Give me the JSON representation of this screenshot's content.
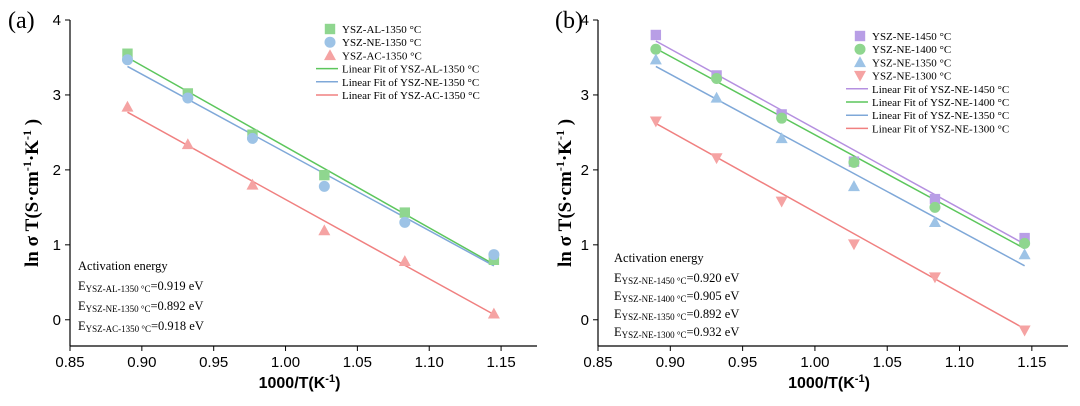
{
  "chart_data": [
    {
      "type": "scatter",
      "panel_label": "(a)",
      "title": "",
      "xlabel": "1000/T(K",
      "xlabel_sup": "-1",
      "xlabel_end": ")",
      "ylabel_main": "ln σ T(S·cm",
      "ylabel_sup1": "-1",
      "ylabel_mid": "·K",
      "ylabel_end": ")",
      "xlim": [
        0.85,
        1.175
      ],
      "ylim": [
        -0.35,
        4.0
      ],
      "xticks": [
        0.85,
        0.9,
        0.95,
        1.0,
        1.05,
        1.1,
        1.15
      ],
      "xtick_labels": [
        "0.85",
        "0.90",
        "0.95",
        "1.00",
        "1.05",
        "1.10",
        "1.15"
      ],
      "yticks": [
        0,
        1,
        2,
        3,
        4
      ],
      "ytick_labels": [
        "0",
        "1",
        "2",
        "3",
        "4"
      ],
      "x": [
        0.89,
        0.932,
        0.977,
        1.027,
        1.083,
        1.145
      ],
      "series": [
        {
          "name": "YSZ-AL-1350 °C",
          "marker": "square",
          "color": "#8fd68f",
          "values": [
            3.55,
            3.02,
            2.47,
            1.93,
            1.43,
            0.8
          ]
        },
        {
          "name": "YSZ-NE-1350 °C",
          "marker": "circle",
          "color": "#9dc3e6",
          "values": [
            3.47,
            2.96,
            2.42,
            1.78,
            1.3,
            0.87
          ]
        },
        {
          "name": "YSZ-AC-1350 °C",
          "marker": "triangle-up",
          "color": "#f5a3a3",
          "values": [
            2.84,
            2.34,
            1.8,
            1.19,
            0.78,
            0.08
          ]
        }
      ],
      "fits": [
        {
          "name": "Linear Fit of YSZ-AL-1350 °C",
          "color": "#5cc65c",
          "x_range": [
            0.89,
            1.145
          ],
          "y_range": [
            3.5,
            0.74
          ]
        },
        {
          "name": "Linear Fit of YSZ-NE-1350 °C",
          "color": "#7fa8d8",
          "x_range": [
            0.89,
            1.145
          ],
          "y_range": [
            3.38,
            0.72
          ]
        },
        {
          "name": "Linear Fit of YSZ-AC-1350 °C",
          "color": "#f08080",
          "x_range": [
            0.89,
            1.145
          ],
          "y_range": [
            2.77,
            0.07
          ]
        }
      ],
      "annotation": {
        "title": "Activation energy",
        "lines": [
          {
            "prefix": "E",
            "sub": "YSZ-AL-1350 °C",
            "value": "=0.919  eV"
          },
          {
            "prefix": "E",
            "sub": "YSZ-NE-1350 °C",
            "value": "=0.892  eV"
          },
          {
            "prefix": "E",
            "sub": "YSZ-AC-1350 °C",
            "value": "=0.918  eV"
          }
        ]
      }
    },
    {
      "type": "scatter",
      "panel_label": "(b)",
      "title": "",
      "xlabel": "1000/T(K",
      "xlabel_sup": "-1",
      "xlabel_end": ")",
      "ylabel_main": "ln σ T(S·cm",
      "ylabel_sup1": "-1",
      "ylabel_mid": "·K",
      "ylabel_end": ")",
      "xlim": [
        0.85,
        1.175
      ],
      "ylim": [
        -0.35,
        4.0
      ],
      "xticks": [
        0.85,
        0.9,
        0.95,
        1.0,
        1.05,
        1.1,
        1.15
      ],
      "xtick_labels": [
        "0.85",
        "0.90",
        "0.95",
        "1.00",
        "1.05",
        "1.10",
        "1.15"
      ],
      "yticks": [
        0,
        1,
        2,
        3,
        4
      ],
      "ytick_labels": [
        "0",
        "1",
        "2",
        "3",
        "4"
      ],
      "x": [
        0.89,
        0.932,
        0.977,
        1.027,
        1.083,
        1.145
      ],
      "series": [
        {
          "name": "YSZ-NE-1450 °C",
          "marker": "square",
          "color": "#b89ee6",
          "values": [
            3.8,
            3.26,
            2.74,
            2.11,
            1.61,
            1.09
          ]
        },
        {
          "name": "YSZ-NE-1400 °C",
          "marker": "circle",
          "color": "#8fd68f",
          "values": [
            3.61,
            3.22,
            2.69,
            2.1,
            1.5,
            1.02
          ]
        },
        {
          "name": "YSZ-NE-1350 °C",
          "marker": "triangle-up",
          "color": "#9dc3e6",
          "values": [
            3.47,
            2.96,
            2.42,
            1.78,
            1.3,
            0.87
          ]
        },
        {
          "name": "YSZ-NE-1300 °C",
          "marker": "triangle-down",
          "color": "#f5a3a3",
          "values": [
            2.65,
            2.16,
            1.58,
            1.01,
            0.57,
            -0.14
          ]
        }
      ],
      "fits": [
        {
          "name": "Linear Fit of YSZ-NE-1450 °C",
          "color": "#b590e0",
          "x_range": [
            0.89,
            1.145
          ],
          "y_range": [
            3.72,
            1.01
          ]
        },
        {
          "name": "Linear Fit of YSZ-NE-1400 °C",
          "color": "#5cc65c",
          "x_range": [
            0.89,
            1.145
          ],
          "y_range": [
            3.62,
            0.95
          ]
        },
        {
          "name": "Linear Fit of YSZ-NE-1350 °C",
          "color": "#7fa8d8",
          "x_range": [
            0.89,
            1.145
          ],
          "y_range": [
            3.38,
            0.72
          ]
        },
        {
          "name": "Linear Fit of YSZ-NE-1300 °C",
          "color": "#f08080",
          "x_range": [
            0.89,
            1.145
          ],
          "y_range": [
            2.62,
            -0.12
          ]
        }
      ],
      "annotation": {
        "title": "Activation energy",
        "lines": [
          {
            "prefix": "E",
            "sub": "YSZ-NE-1450 °C",
            "value": "=0.920 eV"
          },
          {
            "prefix": "E",
            "sub": "YSZ-NE-1400 °C",
            "value": "=0.905 eV"
          },
          {
            "prefix": "E",
            "sub": "YSZ-NE-1350 °C",
            "value": "=0.892 eV"
          },
          {
            "prefix": "E",
            "sub": "YSZ-NE-1300 °C",
            "value": "=0.932 eV"
          }
        ]
      }
    }
  ]
}
